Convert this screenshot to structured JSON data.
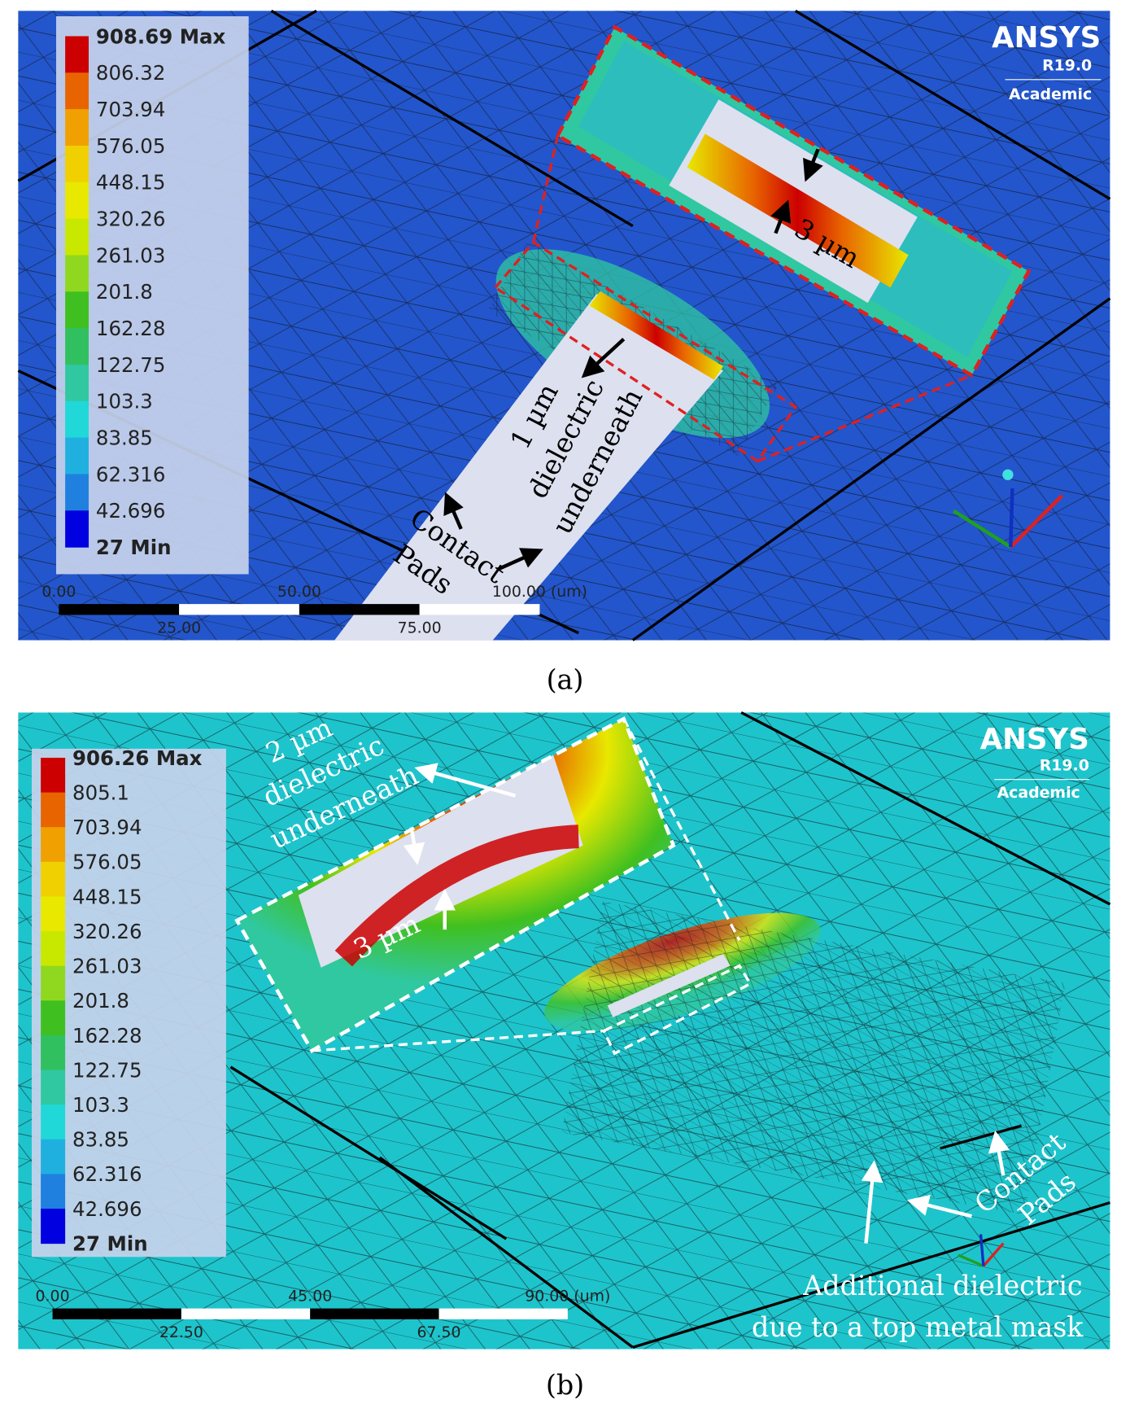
{
  "panels": [
    {
      "legend": {
        "labels": [
          "908.69 Max",
          "806.32",
          "703.94",
          "576.05",
          "448.15",
          "320.26",
          "261.03",
          "201.8",
          "162.28",
          "122.75",
          "103.3",
          "83.85",
          "62.316",
          "42.696",
          "27 Min"
        ],
        "colors": [
          "#cc0000",
          "#e86400",
          "#f0a000",
          "#f0d000",
          "#e8e800",
          "#c8e800",
          "#90d820",
          "#40c020",
          "#30c060",
          "#30c8a0",
          "#20d8d8",
          "#20b0e0",
          "#2080e0",
          "#0000e0"
        ]
      },
      "scale_bar": {
        "top_labels": [
          "0.00",
          "50.00",
          "100.00 (um)"
        ],
        "bottom_labels": [
          "25.00",
          "75.00"
        ]
      },
      "logo": {
        "name": "ANSYS",
        "version": "R19.0",
        "edition": "Academic"
      },
      "annotations": [
        "3 µm",
        "1 µm",
        "dielectric",
        "underneath",
        "Contact",
        "Pads"
      ],
      "caption": "(a)"
    },
    {
      "legend": {
        "labels": [
          "906.26 Max",
          "805.1",
          "703.94",
          "576.05",
          "448.15",
          "320.26",
          "261.03",
          "201.8",
          "162.28",
          "122.75",
          "103.3",
          "83.85",
          "62.316",
          "42.696",
          "27 Min"
        ],
        "colors": [
          "#cc0000",
          "#e86400",
          "#f0a000",
          "#f0d000",
          "#e8e800",
          "#c8e800",
          "#90d820",
          "#40c020",
          "#30c060",
          "#30c8a0",
          "#20d8d8",
          "#20b0e0",
          "#2080e0",
          "#0000e0"
        ]
      },
      "scale_bar": {
        "top_labels": [
          "0.00",
          "45.00",
          "90.00 (um)"
        ],
        "bottom_labels": [
          "22.50",
          "67.50"
        ]
      },
      "logo": {
        "name": "ANSYS",
        "version": "R19.0",
        "edition": "Academic"
      },
      "annotations": [
        "2 µm",
        "dielectric",
        "underneath",
        "3 µm",
        "Contact",
        "Pads",
        "Additional dielectric",
        "due to a top metal mask"
      ],
      "caption": "(b)"
    }
  ]
}
